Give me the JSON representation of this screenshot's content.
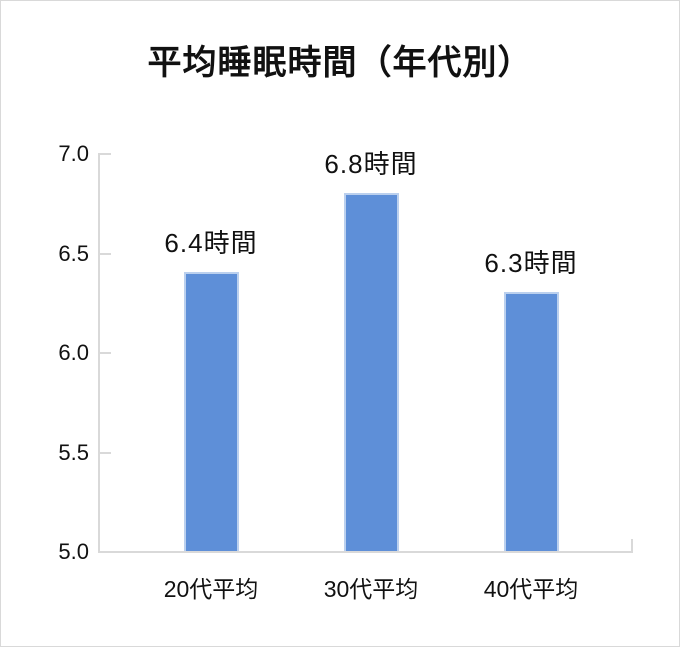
{
  "page": {
    "background": "#ffffff",
    "border_color": "#d9d9d9"
  },
  "chart_data": {
    "type": "bar",
    "title": "平均睡眠時間（年代別）",
    "categories": [
      "20代平均",
      "30代平均",
      "40代平均"
    ],
    "values": [
      6.4,
      6.8,
      6.3
    ],
    "value_labels": [
      "6.4時間",
      "6.8時間",
      "6.3時間"
    ],
    "xlabel": "",
    "ylabel": "",
    "ylim": [
      5.0,
      7.0
    ],
    "yticks": [
      5.0,
      5.5,
      6.0,
      6.5,
      7.0
    ],
    "ytick_labels": [
      "5.0",
      "5.5",
      "6.0",
      "6.5",
      "7.0"
    ],
    "grid": false,
    "legend": false,
    "bar_color": "#5e8fd8",
    "bar_border_color": "#bbd0ee",
    "axis_color": "#d9d9d9",
    "text_color": "#111111"
  }
}
